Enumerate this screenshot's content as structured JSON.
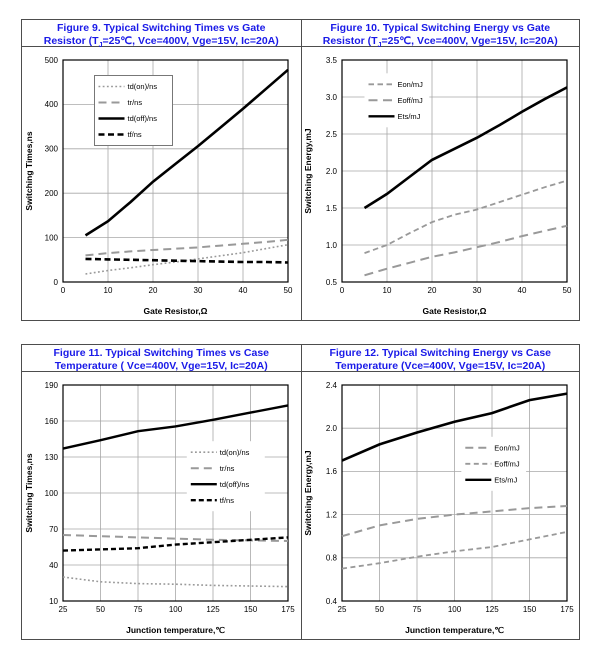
{
  "page": {
    "background": "#ffffff"
  },
  "styles": {
    "title_color": "#1a1ae8",
    "panel_border": "#4d4d4d",
    "grid_color": "#a8a8a8",
    "plot_border": "#000000",
    "text_color": "#000000",
    "gray_series": "#999999",
    "black_series": "#000000"
  },
  "chart_data": [
    {
      "type": "line",
      "title_line1": "Figure 9. Typical Switching Times vs Gate",
      "title_line2_pre": "Resistor (T",
      "title_line2_sub": "J",
      "title_line2_post": "=25℃, Vce=400V, Vge=15V, Ic=20A)",
      "xlabel": "Gate Resistor,Ω",
      "ylabel": "Switching Times,ns",
      "xlim": [
        0,
        50
      ],
      "ylim": [
        0,
        500
      ],
      "grid": true,
      "legend": {
        "fx": 0.14,
        "fy": 0.07,
        "box": true,
        "position": "upper-left"
      },
      "xticks": [
        {
          "v": 0,
          "label": "0"
        },
        {
          "v": 10,
          "label": "10"
        },
        {
          "v": 20,
          "label": "20"
        },
        {
          "v": 30,
          "label": "30"
        },
        {
          "v": 40,
          "label": "40"
        },
        {
          "v": 50,
          "label": "50"
        }
      ],
      "yticks": [
        {
          "v": 0,
          "label": "0"
        },
        {
          "v": 100,
          "label": "100"
        },
        {
          "v": 200,
          "label": "200"
        },
        {
          "v": 300,
          "label": "300"
        },
        {
          "v": 400,
          "label": "400"
        },
        {
          "v": 500,
          "label": "500"
        }
      ],
      "series": [
        {
          "name": "td(on)/ns",
          "color": "#999999",
          "width": 1.6,
          "dash": "1.8,2.4",
          "x": [
            5,
            10,
            15,
            20,
            25,
            30,
            35,
            40,
            45,
            50
          ],
          "y": [
            18,
            26,
            32,
            39,
            45,
            52,
            59,
            66,
            75,
            84
          ]
        },
        {
          "name": "tr/ns",
          "color": "#999999",
          "width": 2,
          "dash": "8,5",
          "x": [
            5,
            10,
            15,
            20,
            25,
            30,
            35,
            40,
            45,
            50
          ],
          "y": [
            60,
            65,
            69,
            72,
            75,
            78,
            82,
            86,
            90,
            95
          ]
        },
        {
          "name": "td(off)/ns",
          "color": "#000000",
          "width": 2.6,
          "dash": null,
          "x": [
            5,
            10,
            15,
            20,
            25,
            30,
            35,
            40,
            45,
            50
          ],
          "y": [
            105,
            137,
            180,
            226,
            266,
            306,
            348,
            390,
            434,
            478
          ]
        },
        {
          "name": "tf/ns",
          "color": "#000000",
          "width": 2.6,
          "dash": "6,3.5",
          "x": [
            5,
            10,
            15,
            20,
            25,
            30,
            35,
            40,
            45,
            50
          ],
          "y": [
            52,
            51,
            50,
            49,
            48,
            47,
            46,
            45,
            45,
            44
          ]
        }
      ]
    },
    {
      "type": "line",
      "title_line1": "Figure 10. Typical Switching Energy vs Gate",
      "title_line2_pre": "Resistor (T",
      "title_line2_sub": "J",
      "title_line2_post": "=25℃, Vce=400V, Vge=15V, Ic=20A)",
      "xlabel": "Gate Resistor,Ω",
      "ylabel": "Switching Energy,mJ",
      "xlim": [
        0,
        50
      ],
      "ylim": [
        0.5,
        3.5
      ],
      "grid": true,
      "legend": {
        "fx": 0.1,
        "fy": 0.06,
        "box": false,
        "position": "upper-left"
      },
      "xticks": [
        {
          "v": 0,
          "label": "0"
        },
        {
          "v": 10,
          "label": "10"
        },
        {
          "v": 20,
          "label": "20"
        },
        {
          "v": 30,
          "label": "30"
        },
        {
          "v": 40,
          "label": "40"
        },
        {
          "v": 50,
          "label": "50"
        }
      ],
      "yticks": [
        {
          "v": 0.5,
          "label": "0.5"
        },
        {
          "v": 1.0,
          "label": "1.0"
        },
        {
          "v": 1.5,
          "label": "1.5"
        },
        {
          "v": 2.0,
          "label": "2.0"
        },
        {
          "v": 2.5,
          "label": "2.5"
        },
        {
          "v": 3.0,
          "label": "3.0"
        },
        {
          "v": 3.5,
          "label": "3.5"
        }
      ],
      "series": [
        {
          "name": "Eon/mJ",
          "color": "#999999",
          "width": 1.8,
          "dash": "5.5,3.5",
          "x": [
            5,
            10,
            15,
            20,
            25,
            30,
            35,
            40,
            45,
            50
          ],
          "y": [
            0.89,
            1.0,
            1.16,
            1.31,
            1.41,
            1.48,
            1.58,
            1.68,
            1.78,
            1.87
          ]
        },
        {
          "name": "Eoff/mJ",
          "color": "#999999",
          "width": 2,
          "dash": "9,5.5",
          "x": [
            5,
            10,
            15,
            20,
            25,
            30,
            35,
            40,
            45,
            50
          ],
          "y": [
            0.59,
            0.68,
            0.76,
            0.84,
            0.9,
            0.97,
            1.04,
            1.12,
            1.19,
            1.26
          ]
        },
        {
          "name": "Ets/mJ",
          "color": "#000000",
          "width": 2.6,
          "dash": null,
          "x": [
            5,
            10,
            15,
            20,
            25,
            30,
            35,
            40,
            45,
            50
          ],
          "y": [
            1.5,
            1.69,
            1.92,
            2.15,
            2.3,
            2.45,
            2.62,
            2.8,
            2.97,
            3.13
          ]
        }
      ]
    },
    {
      "type": "line",
      "title_line1": "Figure 11. Typical Switching Times vs Case",
      "title_line2_pre": "Temperature ( Vce=400V, Vge=15V, Ic=20A)",
      "title_line2_sub": "",
      "title_line2_post": "",
      "xlabel": "Junction temperature,℃",
      "ylabel": "Switching Times,ns",
      "xlim": [
        25,
        175
      ],
      "ylim": [
        10,
        190
      ],
      "grid": true,
      "legend": {
        "fx": 0.55,
        "fy": 0.26,
        "box": false,
        "position": "center-right"
      },
      "xticks": [
        {
          "v": 25,
          "label": "25"
        },
        {
          "v": 50,
          "label": "50"
        },
        {
          "v": 75,
          "label": "75"
        },
        {
          "v": 100,
          "label": "100"
        },
        {
          "v": 125,
          "label": "125"
        },
        {
          "v": 150,
          "label": "150"
        },
        {
          "v": 175,
          "label": "175"
        }
      ],
      "yticks": [
        {
          "v": 10,
          "label": "10"
        },
        {
          "v": 40,
          "label": "40"
        },
        {
          "v": 70,
          "label": "70"
        },
        {
          "v": 100,
          "label": "100"
        },
        {
          "v": 130,
          "label": "130"
        },
        {
          "v": 160,
          "label": "160"
        },
        {
          "v": 190,
          "label": "190"
        }
      ],
      "series": [
        {
          "name": "td(on)/ns",
          "color": "#999999",
          "width": 1.6,
          "dash": "1.8,2.4",
          "x": [
            25,
            50,
            75,
            100,
            125,
            150,
            175
          ],
          "y": [
            30,
            26,
            24.5,
            24,
            23,
            22.5,
            22
          ]
        },
        {
          "name": "tr/ns",
          "color": "#999999",
          "width": 2,
          "dash": "8,5",
          "x": [
            25,
            50,
            75,
            100,
            125,
            150,
            175
          ],
          "y": [
            65,
            64,
            63,
            62,
            61,
            60.5,
            60
          ]
        },
        {
          "name": "td(off)/ns",
          "color": "#000000",
          "width": 2.4,
          "dash": null,
          "x": [
            25,
            50,
            75,
            100,
            125,
            150,
            175
          ],
          "y": [
            137,
            144,
            151.5,
            155.5,
            161,
            167,
            173
          ]
        },
        {
          "name": "tf/ns",
          "color": "#000000",
          "width": 2.4,
          "dash": "5,3",
          "x": [
            25,
            50,
            75,
            100,
            125,
            150,
            175
          ],
          "y": [
            52,
            53,
            54,
            57,
            59,
            61,
            63
          ]
        }
      ]
    },
    {
      "type": "line",
      "title_line1": "Figure 12. Typical Switching Energy vs Case",
      "title_line2_pre": "Temperature (Vce=400V, Vge=15V, Ic=20A)",
      "title_line2_sub": "",
      "title_line2_post": "",
      "xlabel": "Junction temperature,℃",
      "ylabel": "Switching Energy,mJ",
      "xlim": [
        25,
        175
      ],
      "ylim": [
        0.4,
        2.4
      ],
      "grid": true,
      "legend": {
        "fx": 0.53,
        "fy": 0.24,
        "box": false,
        "position": "center-right"
      },
      "xticks": [
        {
          "v": 25,
          "label": "25"
        },
        {
          "v": 50,
          "label": "50"
        },
        {
          "v": 75,
          "label": "75"
        },
        {
          "v": 100,
          "label": "100"
        },
        {
          "v": 125,
          "label": "125"
        },
        {
          "v": 150,
          "label": "150"
        },
        {
          "v": 175,
          "label": "175"
        }
      ],
      "yticks": [
        {
          "v": 0.4,
          "label": "0.4"
        },
        {
          "v": 0.8,
          "label": "0.8"
        },
        {
          "v": 1.2,
          "label": "1.2"
        },
        {
          "v": 1.6,
          "label": "1.6"
        },
        {
          "v": 2.0,
          "label": "2.0"
        },
        {
          "v": 2.4,
          "label": "2.4"
        }
      ],
      "series": [
        {
          "name": "Eon/mJ",
          "color": "#999999",
          "width": 2,
          "dash": "8,5",
          "x": [
            25,
            50,
            75,
            100,
            125,
            150,
            175
          ],
          "y": [
            1.0,
            1.1,
            1.16,
            1.2,
            1.23,
            1.26,
            1.28
          ]
        },
        {
          "name": "Eoff/mJ",
          "color": "#999999",
          "width": 1.8,
          "dash": "5,3.5",
          "x": [
            25,
            50,
            75,
            100,
            125,
            150,
            175
          ],
          "y": [
            0.7,
            0.75,
            0.81,
            0.86,
            0.9,
            0.97,
            1.04
          ]
        },
        {
          "name": "Ets/mJ",
          "color": "#000000",
          "width": 2.6,
          "dash": null,
          "x": [
            25,
            50,
            75,
            100,
            125,
            150,
            175
          ],
          "y": [
            1.7,
            1.85,
            1.96,
            2.06,
            2.14,
            2.26,
            2.32
          ]
        }
      ]
    }
  ]
}
